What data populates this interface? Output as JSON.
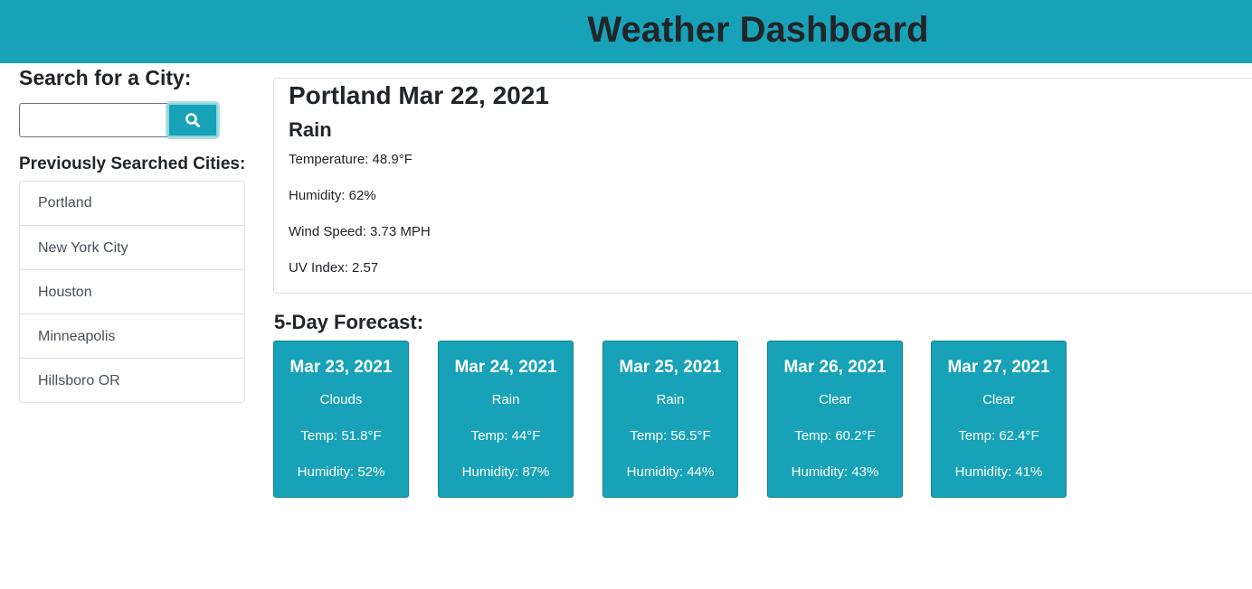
{
  "header": {
    "title": "Weather Dashboard"
  },
  "colors": {
    "accent": "#17a2b8",
    "text": "#212529"
  },
  "search": {
    "label": "Search for a City:",
    "input_value": "",
    "button_icon": "search-icon"
  },
  "history": {
    "label": "Previously Searched Cities:",
    "cities": [
      "Portland",
      "New York City",
      "Houston",
      "Minneapolis",
      "Hillsboro OR"
    ]
  },
  "current": {
    "title": "Portland Mar 22, 2021",
    "condition": "Rain",
    "temperature": "Temperature: 48.9°F",
    "humidity": "Humidity: 62%",
    "wind": "Wind Speed: 3.73 MPH",
    "uv": "UV Index: 2.57"
  },
  "forecast": {
    "label": "5-Day Forecast:",
    "days": [
      {
        "date": "Mar 23, 2021",
        "condition": "Clouds",
        "temp": "Temp: 51.8°F",
        "humidity": "Humidity: 52%"
      },
      {
        "date": "Mar 24, 2021",
        "condition": "Rain",
        "temp": "Temp: 44°F",
        "humidity": "Humidity: 87%"
      },
      {
        "date": "Mar 25, 2021",
        "condition": "Rain",
        "temp": "Temp: 56.5°F",
        "humidity": "Humidity: 44%"
      },
      {
        "date": "Mar 26, 2021",
        "condition": "Clear",
        "temp": "Temp: 60.2°F",
        "humidity": "Humidity: 43%"
      },
      {
        "date": "Mar 27, 2021",
        "condition": "Clear",
        "temp": "Temp: 62.4°F",
        "humidity": "Humidity: 41%"
      }
    ]
  }
}
